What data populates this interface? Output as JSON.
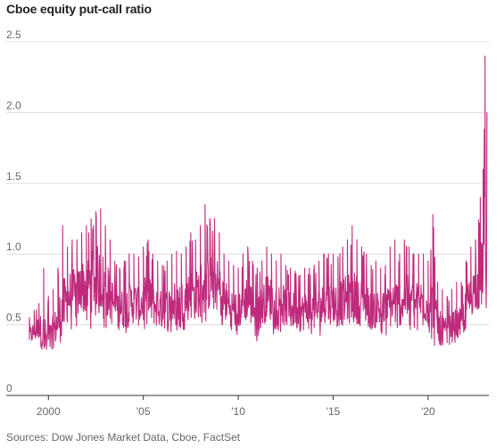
{
  "chart_data": {
    "type": "line",
    "title": "Cboe equity put-call ratio",
    "xlabel": "",
    "ylabel": "",
    "source": "Sources: Dow Jones Market Data, Cboe, FactSet",
    "xlim": [
      1999.0,
      2023.2
    ],
    "ylim": [
      0,
      2.5
    ],
    "y_ticks": [
      {
        "value": 0,
        "label": "0"
      },
      {
        "value": 0.5,
        "label": "0.5"
      },
      {
        "value": 1.0,
        "label": "1.0"
      },
      {
        "value": 1.5,
        "label": "1.5"
      },
      {
        "value": 2.0,
        "label": "2.0"
      },
      {
        "value": 2.5,
        "label": "2.5"
      }
    ],
    "x_ticks": [
      {
        "value": 2000,
        "label": "2000"
      },
      {
        "value": 2005,
        "label": "'05"
      },
      {
        "value": 2010,
        "label": "'10"
      },
      {
        "value": 2015,
        "label": "'15"
      },
      {
        "value": 2020,
        "label": "'20"
      }
    ],
    "grid": "horizontal",
    "line_color": "#bf2a7c",
    "series": [
      {
        "x": [
          1999.0,
          1999.25,
          1999.5,
          1999.75,
          2000.0,
          2000.25,
          2000.5,
          2000.75,
          2001.0,
          2001.25,
          2001.5,
          2001.75,
          2002.0,
          2002.25,
          2002.5,
          2002.75,
          2003.0,
          2003.25,
          2003.5,
          2003.75,
          2004.0,
          2004.25,
          2004.5,
          2004.75,
          2005.0,
          2005.25,
          2005.5,
          2005.75,
          2006.0,
          2006.25,
          2006.5,
          2006.75,
          2007.0,
          2007.25,
          2007.5,
          2007.75,
          2008.0,
          2008.25,
          2008.5,
          2008.75,
          2009.0,
          2009.25,
          2009.5,
          2009.75,
          2010.0,
          2010.25,
          2010.5,
          2010.75,
          2011.0,
          2011.25,
          2011.5,
          2011.75,
          2012.0,
          2012.25,
          2012.5,
          2012.75,
          2013.0,
          2013.25,
          2013.5,
          2013.75,
          2014.0,
          2014.25,
          2014.5,
          2014.75,
          2015.0,
          2015.25,
          2015.5,
          2015.75,
          2016.0,
          2016.25,
          2016.5,
          2016.75,
          2017.0,
          2017.25,
          2017.5,
          2017.75,
          2018.0,
          2018.25,
          2018.5,
          2018.75,
          2019.0,
          2019.25,
          2019.5,
          2019.75,
          2020.0,
          2020.25,
          2020.5,
          2020.75,
          2021.0,
          2021.25,
          2021.5,
          2021.75,
          2022.0,
          2022.25,
          2022.5,
          2022.75,
          2022.9,
          2023.0,
          2023.1
        ],
        "values": [
          0.42,
          0.45,
          0.48,
          0.42,
          0.38,
          0.45,
          0.52,
          0.6,
          0.68,
          0.72,
          0.7,
          0.78,
          0.75,
          0.8,
          0.85,
          0.82,
          0.78,
          0.7,
          0.62,
          0.6,
          0.62,
          0.64,
          0.66,
          0.64,
          0.66,
          0.68,
          0.65,
          0.62,
          0.6,
          0.62,
          0.64,
          0.66,
          0.66,
          0.68,
          0.72,
          0.7,
          0.75,
          0.78,
          0.8,
          0.82,
          0.74,
          0.68,
          0.64,
          0.62,
          0.6,
          0.66,
          0.7,
          0.62,
          0.6,
          0.62,
          0.7,
          0.68,
          0.64,
          0.66,
          0.62,
          0.6,
          0.6,
          0.58,
          0.6,
          0.6,
          0.6,
          0.62,
          0.64,
          0.66,
          0.66,
          0.64,
          0.66,
          0.68,
          0.7,
          0.68,
          0.68,
          0.64,
          0.6,
          0.62,
          0.6,
          0.6,
          0.64,
          0.66,
          0.64,
          0.7,
          0.68,
          0.64,
          0.66,
          0.68,
          0.62,
          0.58,
          0.5,
          0.46,
          0.44,
          0.48,
          0.5,
          0.5,
          0.62,
          0.7,
          0.78,
          0.8,
          0.95,
          1.05,
          0.8
        ],
        "min_values": [
          0.3,
          0.32,
          0.34,
          0.32,
          0.3,
          0.32,
          0.36,
          0.38,
          0.42,
          0.44,
          0.44,
          0.48,
          0.44,
          0.46,
          0.5,
          0.5,
          0.46,
          0.42,
          0.4,
          0.4,
          0.42,
          0.42,
          0.44,
          0.44,
          0.45,
          0.46,
          0.44,
          0.42,
          0.42,
          0.42,
          0.44,
          0.44,
          0.46,
          0.46,
          0.48,
          0.48,
          0.5,
          0.52,
          0.54,
          0.56,
          0.5,
          0.44,
          0.42,
          0.4,
          0.4,
          0.42,
          0.44,
          0.4,
          0.38,
          0.4,
          0.46,
          0.44,
          0.42,
          0.44,
          0.42,
          0.4,
          0.4,
          0.38,
          0.4,
          0.42,
          0.42,
          0.42,
          0.44,
          0.44,
          0.44,
          0.44,
          0.44,
          0.46,
          0.48,
          0.46,
          0.46,
          0.44,
          0.42,
          0.42,
          0.42,
          0.42,
          0.44,
          0.46,
          0.44,
          0.48,
          0.46,
          0.44,
          0.46,
          0.46,
          0.4,
          0.36,
          0.34,
          0.34,
          0.36,
          0.36,
          0.38,
          0.38,
          0.44,
          0.5,
          0.52,
          0.54,
          0.6,
          0.65,
          0.6
        ],
        "max_values": [
          0.55,
          0.6,
          0.65,
          0.9,
          0.7,
          0.75,
          0.9,
          1.2,
          1.05,
          1.1,
          1.1,
          1.15,
          1.2,
          1.25,
          1.3,
          1.32,
          1.2,
          1.1,
          0.95,
          0.9,
          0.95,
          1.0,
          1.0,
          0.98,
          1.05,
          1.1,
          1.0,
          0.95,
          0.92,
          0.95,
          1.0,
          1.02,
          1.0,
          1.05,
          1.15,
          1.1,
          1.2,
          1.35,
          1.25,
          1.25,
          1.15,
          1.0,
          0.95,
          0.92,
          0.9,
          1.0,
          1.05,
          0.95,
          0.9,
          0.95,
          1.05,
          1.0,
          0.95,
          1.0,
          0.92,
          0.9,
          0.88,
          0.85,
          0.9,
          0.9,
          0.92,
          0.95,
          1.0,
          1.0,
          1.0,
          0.98,
          1.05,
          1.1,
          1.2,
          1.1,
          1.05,
          1.0,
          0.92,
          0.95,
          0.9,
          0.92,
          1.05,
          1.1,
          1.0,
          1.1,
          1.05,
          1.0,
          1.0,
          1.0,
          0.95,
          1.28,
          0.8,
          0.75,
          0.7,
          0.75,
          0.8,
          0.8,
          0.95,
          1.05,
          1.1,
          1.4,
          1.6,
          2.4,
          2.0
        ]
      }
    ]
  }
}
